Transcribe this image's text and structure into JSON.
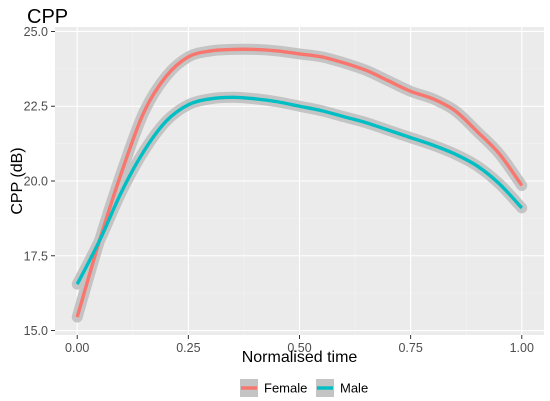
{
  "chart_data": {
    "type": "line",
    "title": "CPP",
    "xlabel": "Normalised time",
    "ylabel": "CPP (dB)",
    "xlim": [
      -0.05,
      1.05
    ],
    "ylim": [
      14.85,
      25.15
    ],
    "x_ticks": [
      0.0,
      0.25,
      0.5,
      0.75,
      1.0
    ],
    "x_tick_labels": [
      "0.00",
      "0.25",
      "0.50",
      "0.75",
      "1.00"
    ],
    "y_ticks": [
      15.0,
      17.5,
      20.0,
      22.5,
      25.0
    ],
    "y_tick_labels": [
      "15.0",
      "17.5",
      "20.0",
      "22.5",
      "25.0"
    ],
    "grid": true,
    "background": "#ebebeb",
    "legend_position": "bottom",
    "confidence_band": true,
    "series": [
      {
        "name": "Female",
        "color": "#f8766d",
        "x": [
          0.0,
          0.05,
          0.1,
          0.15,
          0.2,
          0.25,
          0.3,
          0.35,
          0.4,
          0.45,
          0.5,
          0.55,
          0.6,
          0.65,
          0.7,
          0.75,
          0.8,
          0.85,
          0.9,
          0.95,
          1.0
        ],
        "y": [
          15.45,
          18.0,
          20.3,
          22.3,
          23.5,
          24.15,
          24.35,
          24.4,
          24.4,
          24.35,
          24.25,
          24.15,
          23.95,
          23.7,
          23.35,
          23.0,
          22.75,
          22.35,
          21.65,
          20.9,
          19.85
        ]
      },
      {
        "name": "Male",
        "color": "#00bfc4",
        "x": [
          0.0,
          0.05,
          0.1,
          0.15,
          0.2,
          0.25,
          0.3,
          0.35,
          0.4,
          0.45,
          0.5,
          0.55,
          0.6,
          0.65,
          0.7,
          0.75,
          0.8,
          0.85,
          0.9,
          0.95,
          1.0
        ],
        "y": [
          16.55,
          18.0,
          19.65,
          21.0,
          22.0,
          22.55,
          22.75,
          22.8,
          22.75,
          22.65,
          22.5,
          22.35,
          22.15,
          21.95,
          21.7,
          21.45,
          21.2,
          20.9,
          20.5,
          19.9,
          19.1
        ]
      }
    ]
  }
}
